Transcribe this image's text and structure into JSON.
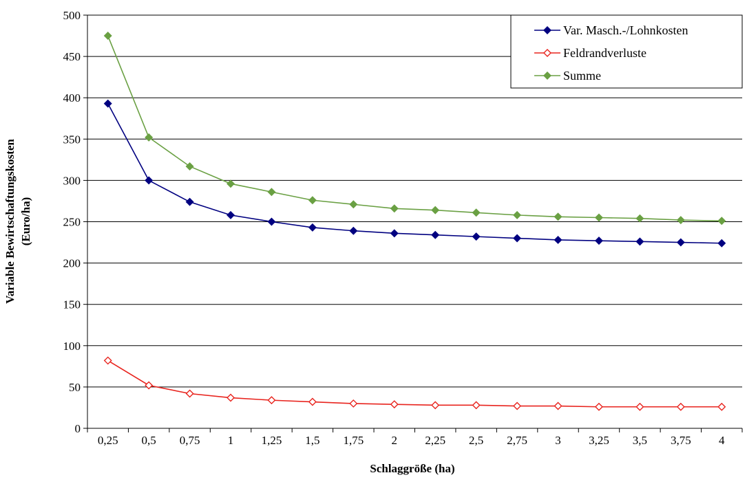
{
  "chart_data": {
    "type": "line",
    "title": "",
    "xlabel": "Schlaggröße (ha)",
    "ylabel_lines": [
      "Variable Bewirtschaftungskosten",
      "(Euro/ha)"
    ],
    "categories": [
      "0,25",
      "0,5",
      "0,75",
      "1",
      "1,25",
      "1,5",
      "1,75",
      "2",
      "2,25",
      "2,5",
      "2,75",
      "3",
      "3,25",
      "3,5",
      "3,75",
      "4"
    ],
    "ylim": [
      0,
      500
    ],
    "yticks": [
      0,
      50,
      100,
      150,
      200,
      250,
      300,
      350,
      400,
      450,
      500
    ],
    "grid": true,
    "legend_position": "top-right",
    "series": [
      {
        "name": "Var. Masch.-/Lohnkosten",
        "color": "#000080",
        "marker": "diamond-filled",
        "values": [
          393,
          300,
          274,
          258,
          250,
          243,
          239,
          236,
          234,
          232,
          230,
          228,
          227,
          226,
          225,
          224
        ]
      },
      {
        "name": "Feldrandverluste",
        "color": "#e8231d",
        "marker": "diamond-open",
        "values": [
          82,
          52,
          42,
          37,
          34,
          32,
          30,
          29,
          28,
          28,
          27,
          27,
          26,
          26,
          26,
          26
        ]
      },
      {
        "name": "Summe",
        "color": "#6aa043",
        "marker": "diamond-filled",
        "values": [
          475,
          352,
          317,
          296,
          286,
          276,
          271,
          266,
          264,
          261,
          258,
          256,
          255,
          254,
          252,
          251
        ]
      }
    ]
  }
}
